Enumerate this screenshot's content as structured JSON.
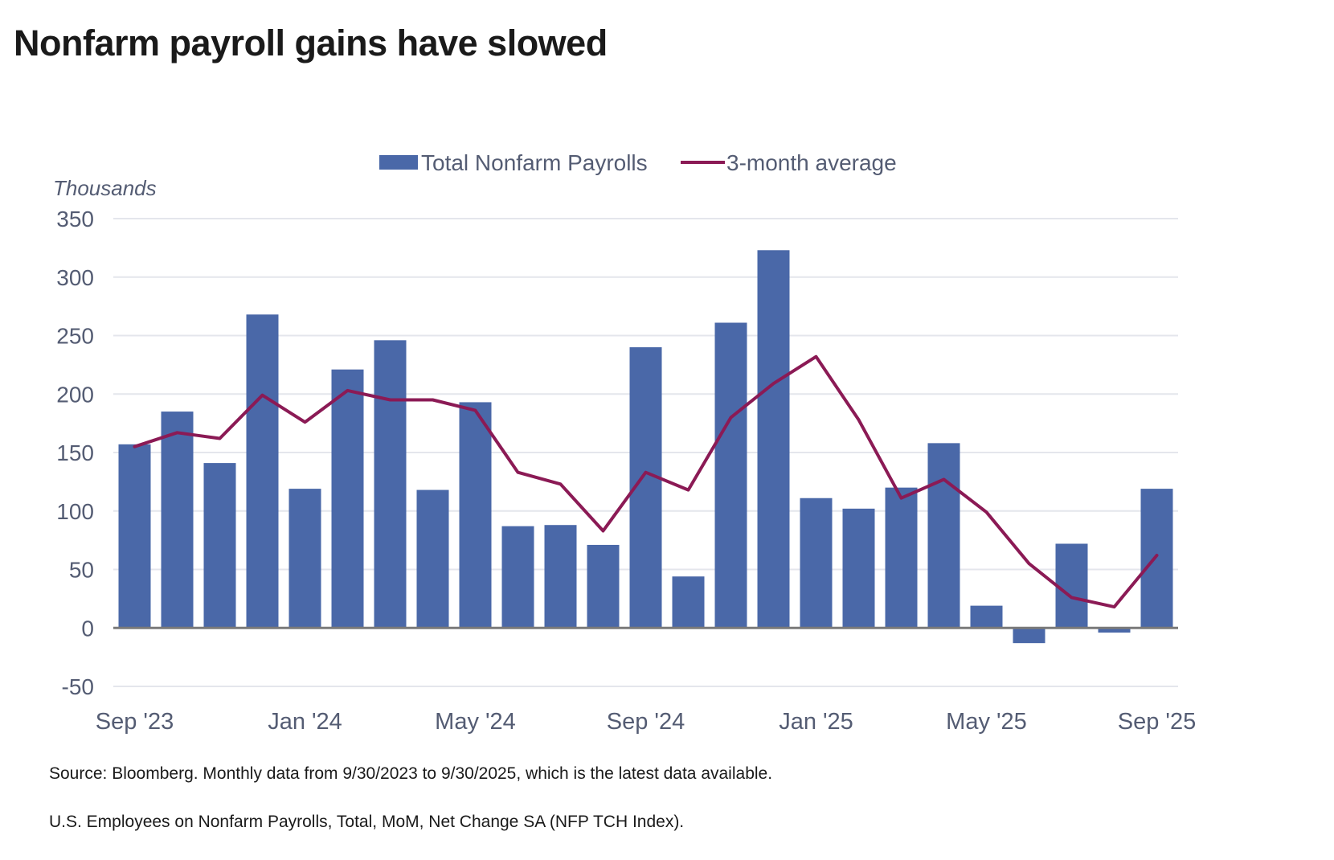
{
  "page": {
    "title": "Nonfarm payroll gains have slowed",
    "footnotes": [
      "Source: Bloomberg. Monthly data from 9/30/2023 to 9/30/2025, which is the latest data available.",
      "U.S. Employees on Nonfarm Payrolls, Total, MoM, Net Change SA (NFP TCH Index)."
    ]
  },
  "chart_data": {
    "type": "bar",
    "ylabel": "Thousands",
    "ylim": [
      -50,
      350
    ],
    "yticks": [
      350,
      300,
      250,
      200,
      150,
      100,
      50,
      0,
      -50
    ],
    "grid": true,
    "legend_position": "top-center",
    "categories": [
      "Sep '23",
      "Oct '23",
      "Nov '23",
      "Dec '23",
      "Jan '24",
      "Feb '24",
      "Mar '24",
      "Apr '24",
      "May '24",
      "Jun '24",
      "Jul '24",
      "Aug '24",
      "Sep '24",
      "Oct '24",
      "Nov '24",
      "Dec '24",
      "Jan '25",
      "Feb '25",
      "Mar '25",
      "Apr '25",
      "May '25",
      "Jun '25",
      "Jul '25",
      "Aug '25",
      "Sep '25"
    ],
    "xtick_labels": [
      {
        "index": 0,
        "label": "Sep '23"
      },
      {
        "index": 4,
        "label": "Jan '24"
      },
      {
        "index": 8,
        "label": "May '24"
      },
      {
        "index": 12,
        "label": "Sep '24"
      },
      {
        "index": 16,
        "label": "Jan '25"
      },
      {
        "index": 20,
        "label": "May '25"
      },
      {
        "index": 24,
        "label": "Sep '25"
      }
    ],
    "series": [
      {
        "name": "Total Nonfarm Payrolls",
        "type": "bar",
        "color": "#4a68a8",
        "values": [
          157,
          185,
          141,
          268,
          119,
          221,
          246,
          118,
          193,
          87,
          88,
          71,
          240,
          44,
          261,
          323,
          111,
          102,
          120,
          158,
          19,
          -13,
          72,
          -4,
          119
        ]
      },
      {
        "name": "3-month average",
        "type": "line",
        "color": "#8b1a55",
        "values": [
          155,
          167,
          162,
          199,
          176,
          203,
          195,
          195,
          186,
          133,
          123,
          83,
          133,
          118,
          180,
          209,
          232,
          178,
          111,
          127,
          99,
          55,
          26,
          18,
          62
        ]
      }
    ]
  }
}
